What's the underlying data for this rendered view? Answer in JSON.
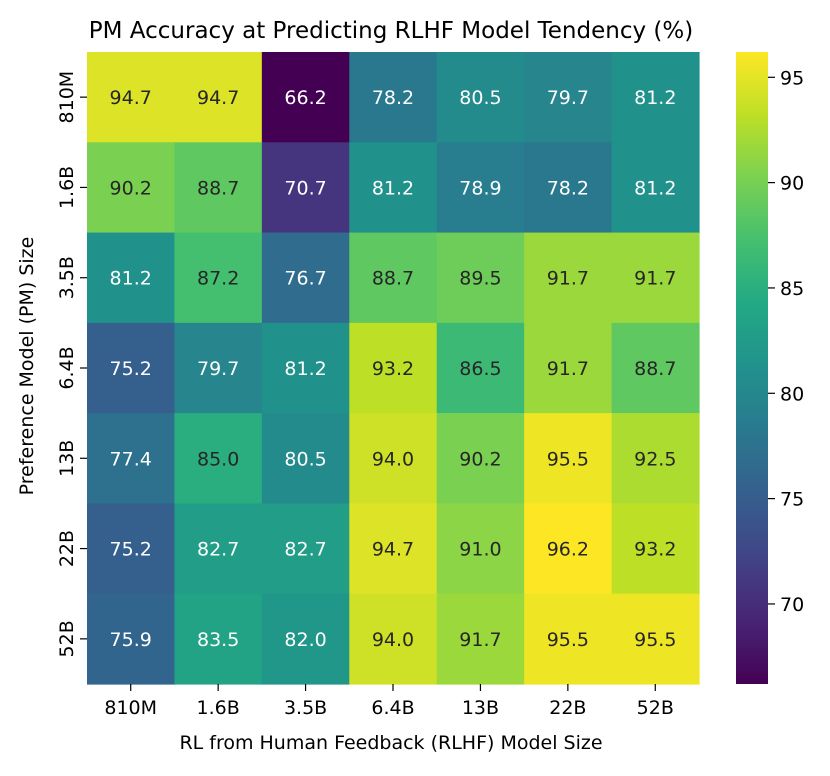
{
  "chart_data": {
    "type": "heatmap",
    "title": "PM Accuracy at Predicting RLHF Model Tendency (%)",
    "xlabel": "RL from Human Feedback (RLHF) Model Size",
    "ylabel": "Preference Model (PM) Size",
    "x_categories": [
      "810M",
      "1.6B",
      "3.5B",
      "6.4B",
      "13B",
      "22B",
      "52B"
    ],
    "y_categories": [
      "810M",
      "1.6B",
      "3.5B",
      "6.4B",
      "13B",
      "22B",
      "52B"
    ],
    "values": [
      [
        94.7,
        94.7,
        66.2,
        78.2,
        80.5,
        79.7,
        81.2
      ],
      [
        90.2,
        88.7,
        70.7,
        81.2,
        78.9,
        78.2,
        81.2
      ],
      [
        81.2,
        87.2,
        76.7,
        88.7,
        89.5,
        91.7,
        91.7
      ],
      [
        75.2,
        79.7,
        81.2,
        93.2,
        86.5,
        91.7,
        88.7
      ],
      [
        77.4,
        85.0,
        80.5,
        94.0,
        90.2,
        95.5,
        92.5
      ],
      [
        75.2,
        82.7,
        82.7,
        94.7,
        91.0,
        96.2,
        93.2
      ],
      [
        75.9,
        83.5,
        82.0,
        94.0,
        91.7,
        95.5,
        95.5
      ]
    ],
    "colormap": "viridis",
    "color_range": [
      66.2,
      96.2
    ],
    "colorbar_ticks": [
      "70",
      "75",
      "80",
      "85",
      "90",
      "95"
    ],
    "legend": "right"
  }
}
